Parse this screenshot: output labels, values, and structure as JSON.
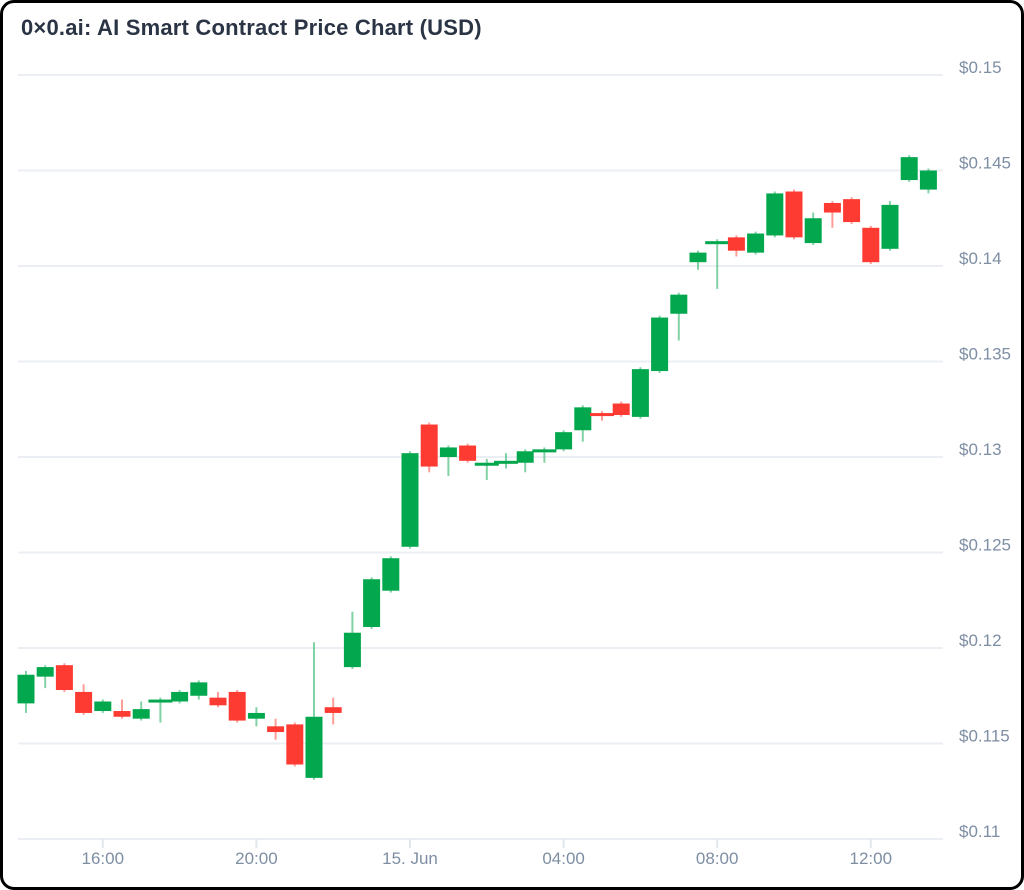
{
  "header": {
    "title": "0×0.ai: AI Smart Contract Price Chart (USD)"
  },
  "chart_data": {
    "type": "candlestick",
    "title": "0×0.ai: AI Smart Contract Price Chart (USD)",
    "currency": "USD",
    "interval": "30m",
    "ylim": [
      0.11,
      0.15
    ],
    "grid": "horizontal-only",
    "y_axis_side": "right",
    "y_ticks": [
      "$0.15",
      "$0.145",
      "$0.14",
      "$0.135",
      "$0.13",
      "$0.125",
      "$0.12",
      "$0.115",
      "$0.11"
    ],
    "y_tick_values": [
      0.15,
      0.145,
      0.14,
      0.135,
      0.13,
      0.125,
      0.12,
      0.115,
      0.11
    ],
    "x_ticks": [
      {
        "label": "16:00",
        "index": 4
      },
      {
        "label": "20:00",
        "index": 12
      },
      {
        "label": "15. Jun",
        "index": 20
      },
      {
        "label": "04:00",
        "index": 28
      },
      {
        "label": "08:00",
        "index": 36
      },
      {
        "label": "12:00",
        "index": 44
      }
    ],
    "colors": {
      "up": "#03a74d",
      "down": "#fe3b32",
      "grid": "#ebeff4",
      "tick": "#e2e7ec",
      "axis_label": "#7e8ea3",
      "title": "#2a3444",
      "background": "#ffffff",
      "frame_border": "#000000"
    },
    "candles": [
      {
        "time": "14:00",
        "open": 0.1171,
        "high": 0.1188,
        "low": 0.1166,
        "close": 0.1186
      },
      {
        "time": "14:30",
        "open": 0.1185,
        "high": 0.1191,
        "low": 0.1179,
        "close": 0.119
      },
      {
        "time": "15:00",
        "open": 0.1191,
        "high": 0.1192,
        "low": 0.1177,
        "close": 0.1178
      },
      {
        "time": "15:30",
        "open": 0.1177,
        "high": 0.1181,
        "low": 0.1165,
        "close": 0.1166
      },
      {
        "time": "16:00",
        "open": 0.1167,
        "high": 0.1173,
        "low": 0.1166,
        "close": 0.1172
      },
      {
        "time": "16:30",
        "open": 0.1167,
        "high": 0.1173,
        "low": 0.1163,
        "close": 0.1164
      },
      {
        "time": "17:00",
        "open": 0.1163,
        "high": 0.1172,
        "low": 0.1162,
        "close": 0.1168
      },
      {
        "time": "17:30",
        "open": 0.1172,
        "high": 0.1174,
        "low": 0.1161,
        "close": 0.1173
      },
      {
        "time": "18:00",
        "open": 0.1172,
        "high": 0.1178,
        "low": 0.1171,
        "close": 0.1177
      },
      {
        "time": "18:30",
        "open": 0.1175,
        "high": 0.1183,
        "low": 0.1173,
        "close": 0.1182
      },
      {
        "time": "19:00",
        "open": 0.1174,
        "high": 0.1177,
        "low": 0.1169,
        "close": 0.117
      },
      {
        "time": "19:30",
        "open": 0.1177,
        "high": 0.1178,
        "low": 0.1161,
        "close": 0.1162
      },
      {
        "time": "20:00",
        "open": 0.1163,
        "high": 0.1169,
        "low": 0.1159,
        "close": 0.1166
      },
      {
        "time": "20:30",
        "open": 0.1159,
        "high": 0.1163,
        "low": 0.1152,
        "close": 0.1156
      },
      {
        "time": "21:00",
        "open": 0.116,
        "high": 0.1161,
        "low": 0.1138,
        "close": 0.1139
      },
      {
        "time": "21:30",
        "open": 0.1132,
        "high": 0.1203,
        "low": 0.1131,
        "close": 0.1164
      },
      {
        "time": "22:00",
        "open": 0.1169,
        "high": 0.1174,
        "low": 0.116,
        "close": 0.1166
      },
      {
        "time": "22:30",
        "open": 0.119,
        "high": 0.1219,
        "low": 0.1189,
        "close": 0.1208
      },
      {
        "time": "23:00",
        "open": 0.1211,
        "high": 0.1237,
        "low": 0.121,
        "close": 0.1236
      },
      {
        "time": "23:30",
        "open": 0.123,
        "high": 0.1248,
        "low": 0.1229,
        "close": 0.1247
      },
      {
        "time": "00:00",
        "open": 0.1253,
        "high": 0.1303,
        "low": 0.1252,
        "close": 0.1302
      },
      {
        "time": "00:30",
        "open": 0.1317,
        "high": 0.1318,
        "low": 0.1292,
        "close": 0.1295
      },
      {
        "time": "01:00",
        "open": 0.13,
        "high": 0.1306,
        "low": 0.129,
        "close": 0.1305
      },
      {
        "time": "01:30",
        "open": 0.1306,
        "high": 0.1307,
        "low": 0.1297,
        "close": 0.1298
      },
      {
        "time": "02:00",
        "open": 0.1295,
        "high": 0.1299,
        "low": 0.1288,
        "close": 0.1297
      },
      {
        "time": "02:30",
        "open": 0.1296,
        "high": 0.1302,
        "low": 0.1294,
        "close": 0.1298
      },
      {
        "time": "03:00",
        "open": 0.1297,
        "high": 0.1304,
        "low": 0.1292,
        "close": 0.1303
      },
      {
        "time": "03:30",
        "open": 0.1302,
        "high": 0.1305,
        "low": 0.1297,
        "close": 0.1304
      },
      {
        "time": "04:00",
        "open": 0.1304,
        "high": 0.1314,
        "low": 0.1303,
        "close": 0.1313
      },
      {
        "time": "04:30",
        "open": 0.1314,
        "high": 0.1327,
        "low": 0.1308,
        "close": 0.1326
      },
      {
        "time": "05:00",
        "open": 0.1323,
        "high": 0.1324,
        "low": 0.1319,
        "close": 0.1322
      },
      {
        "time": "05:30",
        "open": 0.1328,
        "high": 0.1329,
        "low": 0.1321,
        "close": 0.1322
      },
      {
        "time": "06:00",
        "open": 0.1321,
        "high": 0.1347,
        "low": 0.132,
        "close": 0.1346
      },
      {
        "time": "06:30",
        "open": 0.1345,
        "high": 0.1374,
        "low": 0.1344,
        "close": 0.1373
      },
      {
        "time": "07:00",
        "open": 0.1375,
        "high": 0.1386,
        "low": 0.1361,
        "close": 0.1385
      },
      {
        "time": "07:30",
        "open": 0.1402,
        "high": 0.1408,
        "low": 0.1398,
        "close": 0.1407
      },
      {
        "time": "08:00",
        "open": 0.1411,
        "high": 0.1414,
        "low": 0.1388,
        "close": 0.1413
      },
      {
        "time": "08:30",
        "open": 0.1415,
        "high": 0.1416,
        "low": 0.1405,
        "close": 0.1408
      },
      {
        "time": "09:00",
        "open": 0.1407,
        "high": 0.1418,
        "low": 0.1406,
        "close": 0.1417
      },
      {
        "time": "09:30",
        "open": 0.1416,
        "high": 0.1439,
        "low": 0.1415,
        "close": 0.1438
      },
      {
        "time": "10:00",
        "open": 0.1439,
        "high": 0.144,
        "low": 0.1414,
        "close": 0.1415
      },
      {
        "time": "10:30",
        "open": 0.1412,
        "high": 0.1428,
        "low": 0.1411,
        "close": 0.1425
      },
      {
        "time": "11:00",
        "open": 0.1433,
        "high": 0.1434,
        "low": 0.142,
        "close": 0.1428
      },
      {
        "time": "11:30",
        "open": 0.1435,
        "high": 0.1436,
        "low": 0.1422,
        "close": 0.1423
      },
      {
        "time": "12:00",
        "open": 0.142,
        "high": 0.1421,
        "low": 0.1401,
        "close": 0.1402
      },
      {
        "time": "12:30",
        "open": 0.1409,
        "high": 0.1434,
        "low": 0.1408,
        "close": 0.1432
      },
      {
        "time": "13:00",
        "open": 0.1445,
        "high": 0.1458,
        "low": 0.1444,
        "close": 0.1457
      },
      {
        "time": "13:30",
        "open": 0.144,
        "high": 0.1451,
        "low": 0.1438,
        "close": 0.145
      }
    ]
  }
}
